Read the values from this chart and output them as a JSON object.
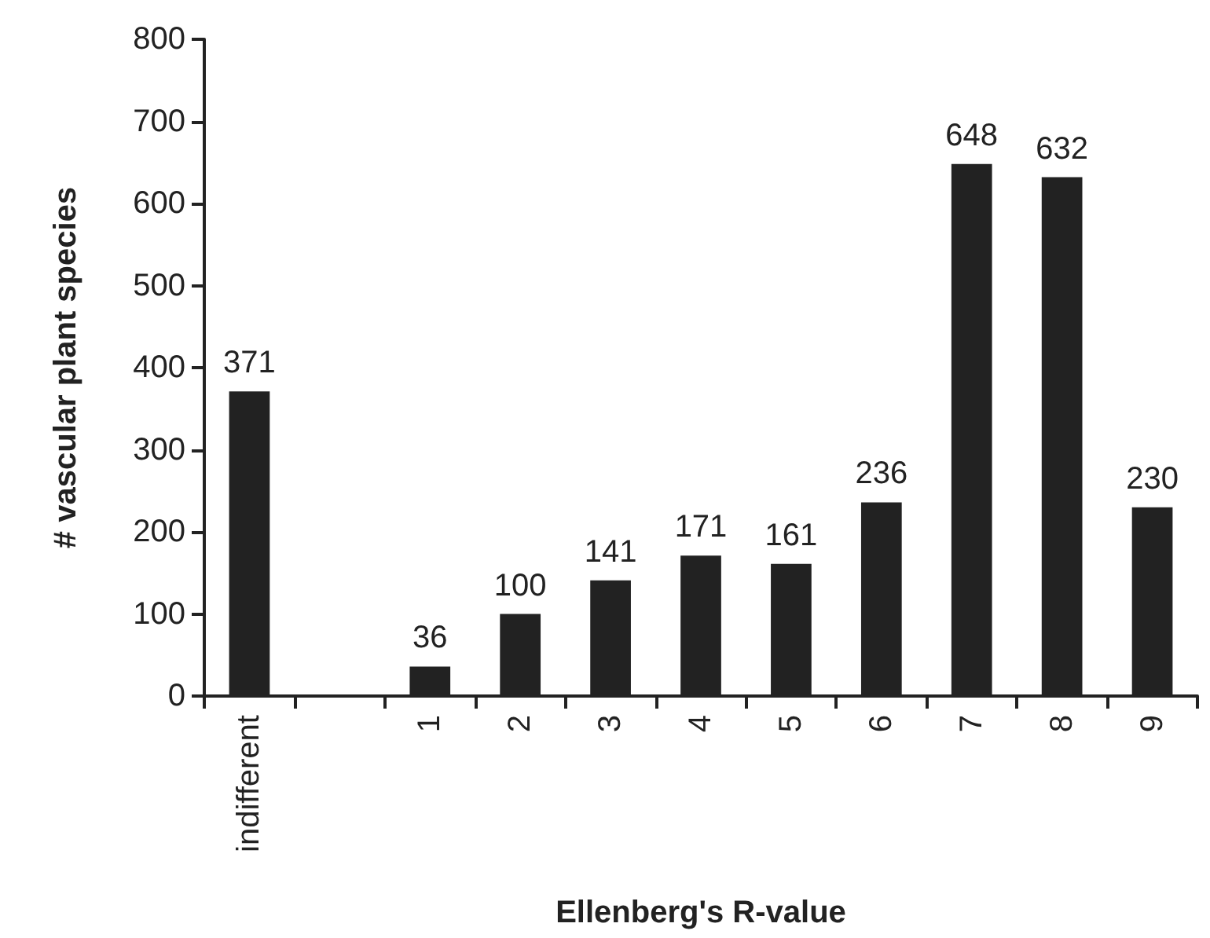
{
  "chart_data": {
    "type": "bar",
    "xlabel": "Ellenberg's R-value",
    "ylabel": "# vascular plant species",
    "categories": [
      "indifferent",
      null,
      "1",
      "2",
      "3",
      "4",
      "5",
      "6",
      "7",
      "8",
      "9"
    ],
    "values": [
      371,
      null,
      36,
      100,
      141,
      171,
      161,
      236,
      648,
      632,
      230
    ],
    "color": "#222222",
    "ylim": [
      0,
      800
    ],
    "yticks": [
      0,
      100,
      200,
      300,
      400,
      500,
      600,
      700,
      800
    ],
    "data_labels": true,
    "grid": false
  }
}
